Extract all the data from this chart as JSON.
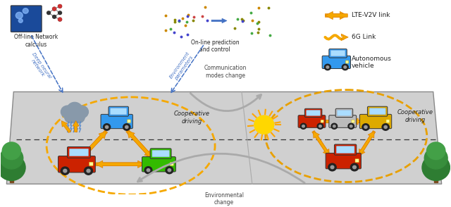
{
  "bg_color": "#ffffff",
  "road_color": "#d0d0d0",
  "road_edge_color": "#aaaaaa",
  "orange": "#F5A800",
  "orange_dark": "#E08000",
  "blue_arrow": "#4472C4",
  "gray_arrow": "#aaaaaa",
  "labels": {
    "offline": "Off-line Network\ncalculus",
    "online": "On-line prediction\nand control",
    "deep_neural": "Deep neural\nnetwork",
    "env_params": "Environment\nparameters",
    "comm_change": "Communication\nmodes change",
    "coop_driving_left": "Cooperative\ndriving",
    "coop_driving_right": "Cooperative\ndriving",
    "env_change": "Environmental\nchange",
    "lte_v2v": "LTE-V2V link",
    "link_6g": "6G Link",
    "auto_veh": "Autonomous\nvehicle"
  }
}
